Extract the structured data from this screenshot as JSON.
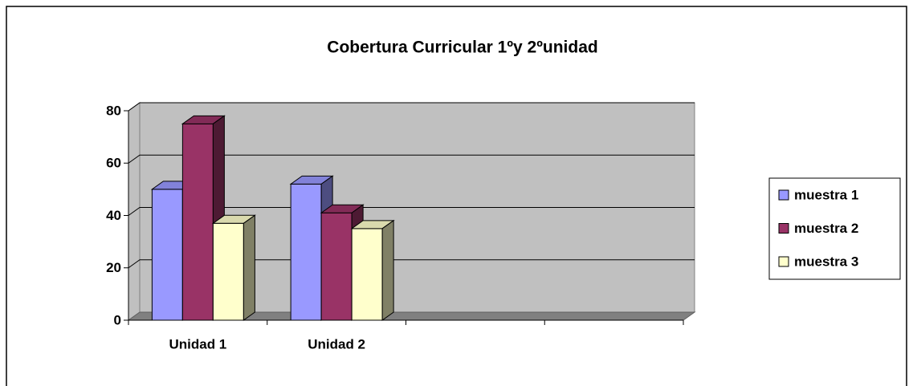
{
  "chart_data": {
    "type": "bar3d",
    "title": "Cobertura Curricular 1ºy 2ºunidad",
    "categories": [
      "Unidad 1",
      "Unidad 2",
      null,
      null
    ],
    "series": [
      {
        "name": "muestra 1",
        "color": "#9999ff",
        "values": [
          50,
          52,
          null,
          null
        ]
      },
      {
        "name": "muestra 2",
        "color": "#993366",
        "values": [
          75,
          41,
          null,
          null
        ]
      },
      {
        "name": "muestra 3",
        "color": "#ffffcc",
        "values": [
          37,
          35,
          null,
          null
        ]
      }
    ],
    "ylim": [
      0,
      80
    ],
    "yticks": [
      0,
      20,
      40,
      60,
      80
    ],
    "grid": true,
    "legend": "right"
  }
}
